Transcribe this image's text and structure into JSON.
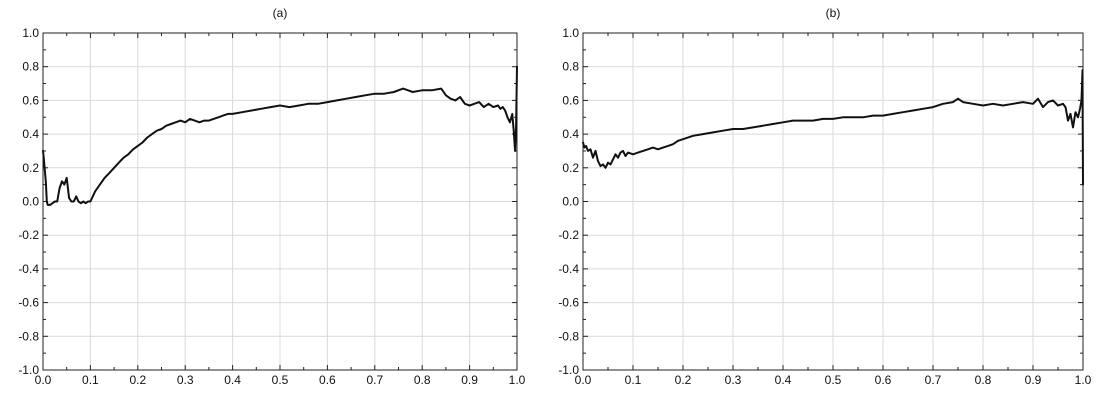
{
  "chart_data": [
    {
      "type": "line",
      "title": "(a)",
      "xlabel": "",
      "ylabel": "",
      "xlim": [
        0,
        1
      ],
      "ylim": [
        -1,
        1
      ],
      "grid": true,
      "xticks": [
        "0.0",
        "0.1",
        "0.2",
        "0.3",
        "0.4",
        "0.5",
        "0.6",
        "0.7",
        "0.8",
        "0.9",
        "1.0"
      ],
      "yticks": [
        "1.0",
        "0.8",
        "0.6",
        "0.4",
        "0.2",
        "0.0",
        "-0.2",
        "-0.4",
        "-0.6",
        "-0.8",
        "-1.0"
      ],
      "series": [
        {
          "x": [
            0.0,
            0.002,
            0.004,
            0.006,
            0.008,
            0.01,
            0.015,
            0.02,
            0.025,
            0.03,
            0.035,
            0.04,
            0.045,
            0.05,
            0.055,
            0.06,
            0.065,
            0.07,
            0.075,
            0.08,
            0.085,
            0.09,
            0.095,
            0.1,
            0.11,
            0.12,
            0.13,
            0.14,
            0.15,
            0.16,
            0.17,
            0.18,
            0.19,
            0.2,
            0.21,
            0.22,
            0.23,
            0.24,
            0.25,
            0.26,
            0.27,
            0.28,
            0.29,
            0.3,
            0.31,
            0.32,
            0.33,
            0.34,
            0.35,
            0.36,
            0.37,
            0.38,
            0.39,
            0.4,
            0.42,
            0.44,
            0.46,
            0.48,
            0.5,
            0.52,
            0.54,
            0.56,
            0.58,
            0.6,
            0.62,
            0.64,
            0.66,
            0.68,
            0.7,
            0.72,
            0.74,
            0.76,
            0.77,
            0.78,
            0.8,
            0.82,
            0.84,
            0.85,
            0.86,
            0.87,
            0.88,
            0.89,
            0.9,
            0.91,
            0.92,
            0.93,
            0.94,
            0.95,
            0.96,
            0.965,
            0.97,
            0.975,
            0.98,
            0.985,
            0.99,
            0.993,
            0.996,
            0.998,
            1.0
          ],
          "values": [
            0.3,
            0.25,
            0.18,
            0.12,
            0.0,
            -0.02,
            -0.02,
            -0.01,
            0.0,
            0.0,
            0.08,
            0.12,
            0.1,
            0.14,
            0.02,
            0.0,
            0.0,
            0.03,
            0.0,
            -0.01,
            0.0,
            -0.01,
            0.0,
            0.0,
            0.06,
            0.1,
            0.14,
            0.17,
            0.2,
            0.23,
            0.26,
            0.28,
            0.31,
            0.33,
            0.35,
            0.38,
            0.4,
            0.42,
            0.43,
            0.45,
            0.46,
            0.47,
            0.48,
            0.47,
            0.49,
            0.48,
            0.47,
            0.48,
            0.48,
            0.49,
            0.5,
            0.51,
            0.52,
            0.52,
            0.53,
            0.54,
            0.55,
            0.56,
            0.57,
            0.56,
            0.57,
            0.58,
            0.58,
            0.59,
            0.6,
            0.61,
            0.62,
            0.63,
            0.64,
            0.64,
            0.65,
            0.67,
            0.66,
            0.65,
            0.66,
            0.66,
            0.67,
            0.63,
            0.61,
            0.6,
            0.62,
            0.58,
            0.57,
            0.58,
            0.59,
            0.56,
            0.58,
            0.56,
            0.57,
            0.55,
            0.56,
            0.54,
            0.5,
            0.47,
            0.52,
            0.42,
            0.3,
            0.45,
            0.8
          ]
        }
      ]
    },
    {
      "type": "line",
      "title": "(b)",
      "xlabel": "",
      "ylabel": "",
      "xlim": [
        0,
        1
      ],
      "ylim": [
        -1,
        1
      ],
      "grid": true,
      "xticks": [
        "0.0",
        "0.1",
        "0.2",
        "0.3",
        "0.4",
        "0.5",
        "0.6",
        "0.7",
        "0.8",
        "0.9",
        "1.0"
      ],
      "yticks": [
        "1.0",
        "0.8",
        "0.6",
        "0.4",
        "0.2",
        "0.0",
        "-0.2",
        "-0.4",
        "-0.6",
        "-0.8",
        "-1.0"
      ],
      "series": [
        {
          "x": [
            0.0,
            0.003,
            0.006,
            0.01,
            0.015,
            0.02,
            0.025,
            0.03,
            0.035,
            0.04,
            0.045,
            0.05,
            0.055,
            0.06,
            0.065,
            0.07,
            0.075,
            0.08,
            0.085,
            0.09,
            0.1,
            0.11,
            0.12,
            0.13,
            0.14,
            0.15,
            0.16,
            0.17,
            0.18,
            0.19,
            0.2,
            0.22,
            0.24,
            0.26,
            0.28,
            0.3,
            0.32,
            0.34,
            0.36,
            0.38,
            0.4,
            0.42,
            0.44,
            0.46,
            0.48,
            0.5,
            0.52,
            0.54,
            0.56,
            0.58,
            0.6,
            0.62,
            0.64,
            0.66,
            0.68,
            0.7,
            0.72,
            0.74,
            0.75,
            0.76,
            0.78,
            0.8,
            0.82,
            0.84,
            0.86,
            0.88,
            0.9,
            0.91,
            0.92,
            0.93,
            0.94,
            0.95,
            0.96,
            0.965,
            0.97,
            0.975,
            0.98,
            0.985,
            0.99,
            0.994,
            0.997,
            0.999,
            1.0
          ],
          "values": [
            0.35,
            0.32,
            0.33,
            0.3,
            0.31,
            0.26,
            0.3,
            0.24,
            0.21,
            0.22,
            0.2,
            0.23,
            0.22,
            0.25,
            0.28,
            0.26,
            0.29,
            0.3,
            0.27,
            0.29,
            0.28,
            0.29,
            0.3,
            0.31,
            0.32,
            0.31,
            0.32,
            0.33,
            0.34,
            0.36,
            0.37,
            0.39,
            0.4,
            0.41,
            0.42,
            0.43,
            0.43,
            0.44,
            0.45,
            0.46,
            0.47,
            0.48,
            0.48,
            0.48,
            0.49,
            0.49,
            0.5,
            0.5,
            0.5,
            0.51,
            0.51,
            0.52,
            0.53,
            0.54,
            0.55,
            0.56,
            0.58,
            0.59,
            0.61,
            0.59,
            0.58,
            0.57,
            0.58,
            0.57,
            0.58,
            0.59,
            0.58,
            0.61,
            0.56,
            0.59,
            0.6,
            0.57,
            0.58,
            0.56,
            0.48,
            0.52,
            0.44,
            0.53,
            0.5,
            0.55,
            0.6,
            0.78,
            0.1
          ]
        }
      ]
    }
  ]
}
